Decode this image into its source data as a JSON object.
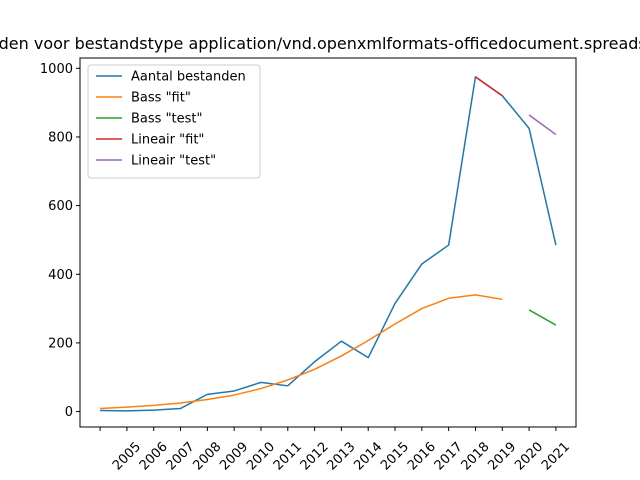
{
  "chart_data": {
    "type": "line",
    "title": "Aantal bestanden voor bestandstype application/vnd.openxmlformats-officedocument.spreadsheetml.sheet",
    "xlabel": "",
    "ylabel": "",
    "x_ticks": [
      "2005",
      "2006",
      "2007",
      "2008",
      "2009",
      "2010",
      "2011",
      "2012",
      "2013",
      "2014",
      "2015",
      "2016",
      "2017",
      "2018",
      "2019",
      "2020",
      "2021"
    ],
    "xlim": [
      2003.25,
      2021.75
    ],
    "ylim": [
      -45,
      1030
    ],
    "y_ticks": [
      0,
      200,
      400,
      600,
      800,
      1000
    ],
    "grid": false,
    "legend_position": "top-left",
    "series": [
      {
        "name": "Aantal bestanden",
        "color": "#1f77b4",
        "x": [
          2004,
          2005,
          2006,
          2007,
          2008,
          2009,
          2010,
          2011,
          2012,
          2013,
          2014,
          2015,
          2016,
          2017,
          2018,
          2019,
          2020,
          2021
        ],
        "values": [
          3,
          2,
          4,
          9,
          50,
          60,
          85,
          75,
          145,
          205,
          157,
          315,
          430,
          485,
          975,
          920,
          825,
          485
        ]
      },
      {
        "name": "Bass \"fit\"",
        "color": "#ff7f0e",
        "x": [
          2004,
          2005,
          2006,
          2007,
          2008,
          2009,
          2010,
          2011,
          2012,
          2013,
          2014,
          2015,
          2016,
          2017,
          2018,
          2019
        ],
        "values": [
          9,
          13,
          18,
          25,
          35,
          48,
          67,
          92,
          123,
          162,
          207,
          255,
          300,
          330,
          340,
          327
        ]
      },
      {
        "name": "Bass \"test\"",
        "color": "#2ca02c",
        "x": [
          2020,
          2021
        ],
        "values": [
          296,
          252
        ]
      },
      {
        "name": "Lineair \"fit\"",
        "color": "#d62728",
        "x": [
          2018,
          2019
        ],
        "values": [
          975,
          920
        ]
      },
      {
        "name": "Lineair \"test\"",
        "color": "#9467bd",
        "x": [
          2020,
          2021
        ],
        "values": [
          864,
          807
        ]
      }
    ]
  }
}
